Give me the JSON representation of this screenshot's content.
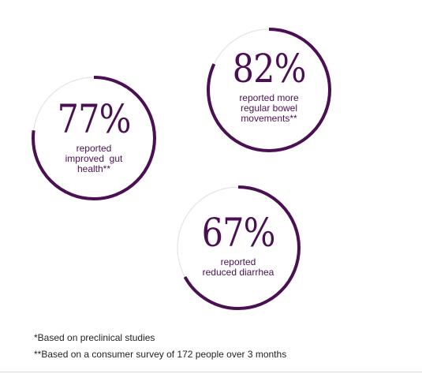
{
  "colors": {
    "accent": "#4b1053",
    "track": "#e6e2e7",
    "text": "#222222"
  },
  "stats": [
    {
      "id": "stat-77",
      "value": "77%",
      "progress": 0.77,
      "label_lines": [
        "reported",
        "improved  gut",
        "health**"
      ]
    },
    {
      "id": "stat-82",
      "value": "82%",
      "progress": 0.82,
      "label_lines": [
        "reported more",
        "regular bowel",
        "movements**"
      ]
    },
    {
      "id": "stat-67",
      "value": "67%",
      "progress": 0.67,
      "label_lines": [
        "reported",
        "reduced diarrhea"
      ]
    }
  ],
  "footnotes": {
    "preclinical": "*Based on preclinical studies",
    "survey": "**Based on a consumer survey of 172 people over 3 months"
  }
}
